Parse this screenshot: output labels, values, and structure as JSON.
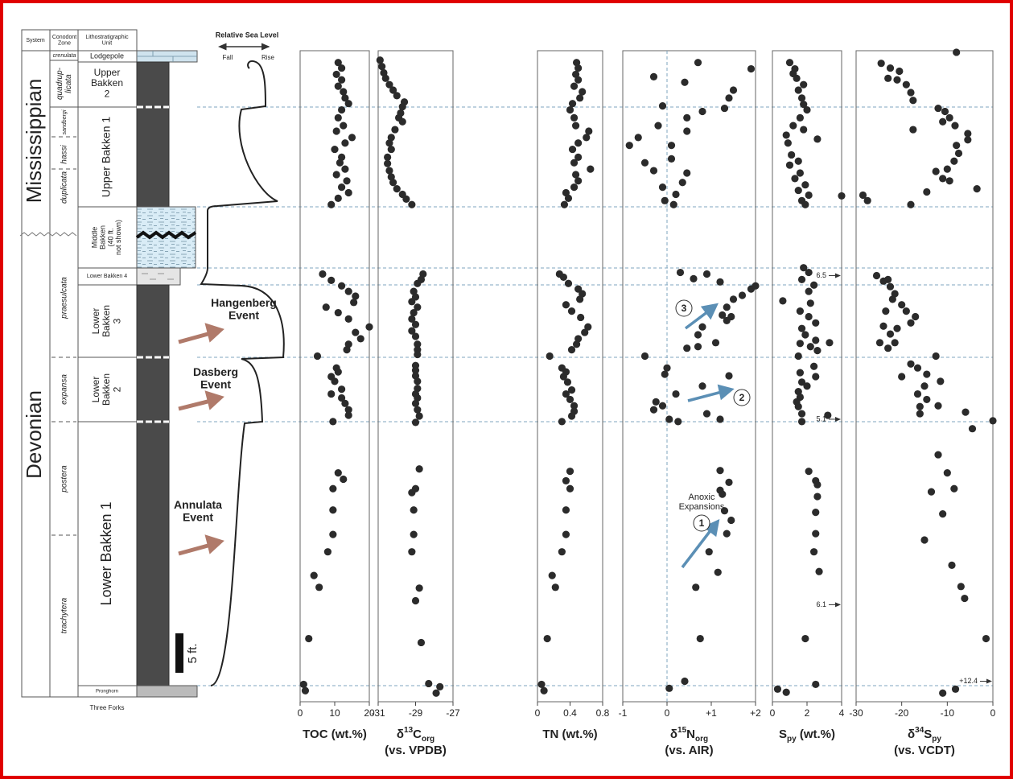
{
  "stratigraphy": {
    "headers": [
      [
        "System"
      ],
      [
        "Conodont",
        "Zone"
      ],
      [
        "Lithostratigraphic",
        "Unit"
      ]
    ],
    "systems": [
      "Mississippian",
      "Devonian"
    ],
    "zones": [
      [
        "crenulata"
      ],
      [
        "quadrup-",
        "licata"
      ],
      [
        "sandbergi"
      ],
      [
        "hassi"
      ],
      [
        "duplicata"
      ],
      [
        "praesulcata"
      ],
      [
        "expansa"
      ],
      [
        "postera"
      ],
      [
        "trachytera"
      ]
    ],
    "units": [
      [
        "Lodgepole"
      ],
      [
        "Upper",
        "Bakken",
        "2"
      ],
      [
        "Upper Bakken 1"
      ],
      [
        "Middle",
        "Bakken",
        "(40 ft.",
        "not shown)"
      ],
      [
        "Lower Bakken 4"
      ],
      [
        "Lower",
        "Bakken",
        "3"
      ],
      [
        "Lower",
        "Bakken",
        "2"
      ],
      [
        "Lower Bakken 1"
      ],
      [
        "Pronghorn"
      ]
    ],
    "underlying": "Three Forks",
    "scale_bar": "5 ft."
  },
  "sea_level": {
    "title": "Relative Sea Level",
    "fall": "Fall",
    "rise": "Rise"
  },
  "events": [
    [
      "Hangenberg",
      "Event"
    ],
    [
      "Dasberg",
      "Event"
    ],
    [
      "Annulata",
      "Event"
    ]
  ],
  "anoxic": {
    "label": [
      "Anoxic",
      "Expansions"
    ],
    "markers": [
      "1",
      "2",
      "3"
    ]
  },
  "chart_data": [
    {
      "type": "scatter",
      "xlabel": {
        "base": "TOC (wt.%)"
      },
      "xlim": [
        0,
        20
      ],
      "xticks": [
        0,
        10,
        20
      ],
      "ylim": [
        -2,
        80.5
      ],
      "color": "#2b2b2b",
      "x": [
        11,
        12,
        10.5,
        12,
        11,
        12.5,
        13,
        14,
        12,
        11,
        12.5,
        10.5,
        15,
        13,
        10,
        12,
        11.5,
        13,
        10.5,
        13.5,
        12,
        14,
        11,
        9,
        6.5,
        9,
        12,
        14,
        16,
        15.5,
        7.5,
        11,
        14,
        20,
        16,
        17.5,
        14,
        13.5,
        5,
        10.5,
        11,
        9,
        10,
        12,
        9,
        12,
        13,
        14,
        14,
        9.5,
        11,
        12.5,
        9.5,
        9.5,
        9.5,
        8,
        4,
        5.5,
        2.5,
        1,
        1.5
      ],
      "values": [
        79,
        78.3,
        77.5,
        76.8,
        76,
        75.3,
        74.5,
        73.8,
        73,
        72,
        71,
        70.3,
        69.5,
        68.8,
        68,
        67,
        66.3,
        65.5,
        64.8,
        64,
        63.2,
        62.5,
        61.8,
        61,
        52.2,
        51.4,
        50.7,
        50,
        49.4,
        48.6,
        48,
        47.3,
        46.5,
        45.5,
        44.8,
        44,
        43.3,
        42.6,
        41.8,
        40.3,
        39.8,
        39.2,
        38.6,
        37.6,
        37,
        36.5,
        35.8,
        35,
        34.3,
        33.5,
        27,
        26.2,
        25,
        22.3,
        19.2,
        17,
        14,
        12.5,
        6,
        0.2,
        -0.6
      ]
    },
    {
      "type": "scatter",
      "xlabel": {
        "pre": "δ",
        "sup": "13",
        "base": "C",
        "sub": "org"
      },
      "xlabel2": "(vs. VPDB)",
      "xlim": [
        -31,
        -27
      ],
      "xticks": [
        -31,
        -29,
        -27
      ],
      "ylim": [
        -2,
        80.5
      ],
      "color": "#2b2b2b",
      "x": [
        -30.9,
        -30.8,
        -30.7,
        -30.6,
        -30.4,
        -30.2,
        -30,
        -29.6,
        -29.7,
        -29.8,
        -29.9,
        -29.7,
        -30.1,
        -30.3,
        -30.4,
        -30.3,
        -30.5,
        -30.5,
        -30.4,
        -30.3,
        -30.2,
        -30,
        -29.7,
        -29.5,
        -29.2,
        -28.6,
        -28.7,
        -28.9,
        -29.1,
        -29,
        -29.2,
        -28.9,
        -29.1,
        -29.2,
        -29,
        -29.2,
        -29,
        -28.9,
        -28.9,
        -28.9,
        -29,
        -29,
        -29,
        -28.9,
        -28.9,
        -29,
        -28.9,
        -29,
        -28.9,
        -28.8,
        -29,
        -28.8,
        -29,
        -29.2,
        -29.1,
        -29.1,
        -29.2,
        -28.8,
        -29,
        -28.7,
        -28.3,
        -27.7,
        -27.9
      ],
      "values": [
        79.3,
        78.5,
        77.7,
        77,
        76.2,
        75.5,
        74.8,
        74,
        73.4,
        72.6,
        72,
        71.5,
        70.5,
        69.5,
        68.8,
        68,
        67,
        66.2,
        65.3,
        64.5,
        63.8,
        63,
        62.3,
        61.7,
        61,
        52.2,
        51.5,
        51,
        50,
        49.3,
        48.7,
        48,
        47.3,
        46.5,
        45.8,
        45,
        44.3,
        43.3,
        42.6,
        42,
        40.6,
        40,
        39.3,
        38.6,
        37.7,
        37,
        36.5,
        35.8,
        35,
        34.2,
        33.4,
        27.5,
        25,
        24.5,
        22.3,
        19.2,
        17,
        12.4,
        10.8,
        5.5,
        0.3,
        -0.1,
        -0.9
      ]
    },
    {
      "type": "scatter",
      "xlabel": {
        "base": "TN (wt.%)"
      },
      "xlim": [
        0,
        0.8
      ],
      "xticks": [
        0,
        0.4,
        0.8
      ],
      "ylim": [
        -2,
        80.5
      ],
      "color": "#2b2b2b",
      "x": [
        0.48,
        0.5,
        0.47,
        0.5,
        0.45,
        0.55,
        0.52,
        0.43,
        0.4,
        0.45,
        0.47,
        0.63,
        0.6,
        0.5,
        0.43,
        0.5,
        0.45,
        0.65,
        0.47,
        0.5,
        0.45,
        0.35,
        0.38,
        0.33,
        0.27,
        0.32,
        0.38,
        0.5,
        0.55,
        0.52,
        0.35,
        0.42,
        0.53,
        0.62,
        0.58,
        0.5,
        0.48,
        0.42,
        0.15,
        0.3,
        0.35,
        0.32,
        0.37,
        0.42,
        0.35,
        0.4,
        0.45,
        0.45,
        0.42,
        0.3,
        0.4,
        0.35,
        0.4,
        0.35,
        0.35,
        0.3,
        0.18,
        0.22,
        0.12,
        0.05,
        0.08
      ],
      "values": [
        79,
        78.3,
        77.5,
        76.8,
        76,
        75.3,
        74.5,
        73.8,
        73,
        72,
        71,
        70.3,
        69.5,
        68.8,
        68,
        67,
        66.3,
        65.5,
        64.8,
        64,
        63.2,
        62.5,
        61.8,
        61,
        52.2,
        51.8,
        51,
        50.3,
        49.7,
        49,
        48.3,
        47.5,
        46.7,
        45.5,
        44.8,
        44,
        43.3,
        42.6,
        41.8,
        40.3,
        39.8,
        39.2,
        38.5,
        37.5,
        37,
        36.3,
        35.5,
        34.8,
        34.2,
        33.5,
        27.2,
        26,
        25,
        22.3,
        19.2,
        17,
        14,
        12.5,
        6,
        0.2,
        -0.6
      ]
    },
    {
      "type": "scatter",
      "xlabel": {
        "pre": "δ",
        "sup": "15",
        "base": "N",
        "sub": "org"
      },
      "xlabel2": "(vs. AIR)",
      "xlim": [
        -1,
        2
      ],
      "xticks": [
        -1,
        0,
        {
          "value": 1,
          "label": "+1"
        },
        {
          "value": 2,
          "label": "+2"
        }
      ],
      "zero_line": true,
      "ylim": [
        -2,
        80.5
      ],
      "color": "#2b2b2b",
      "x": [
        0.7,
        1.9,
        -0.3,
        0.4,
        1.5,
        1.4,
        1.3,
        -0.1,
        0.8,
        0.45,
        -0.2,
        0.45,
        -0.65,
        -0.85,
        0.1,
        0.1,
        -0.5,
        -0.3,
        0.45,
        0.35,
        -0.1,
        0.2,
        -0.05,
        0.15,
        0.3,
        0.9,
        0.6,
        1.2,
        1.9,
        2,
        1.7,
        1.5,
        1.35,
        1.25,
        1.45,
        1.35,
        0.8,
        0.7,
        1.1,
        0.45,
        0.7,
        -0.5,
        0,
        -0.05,
        1.4,
        0.8,
        0.2,
        -0.25,
        -0.1,
        -0.3,
        0.9,
        0.05,
        0.25,
        1.2,
        1.2,
        1.4,
        1.2,
        1.25,
        1.3,
        1.45,
        1.35,
        0.95,
        1.15,
        0.65,
        0.75,
        0.4,
        0.05
      ],
      "values": [
        79,
        78.2,
        77.2,
        76.5,
        75.5,
        74.5,
        73.2,
        73.5,
        72.8,
        72,
        71,
        70.3,
        69.5,
        68.5,
        68.5,
        66.8,
        66.3,
        65.3,
        65,
        63.8,
        63.2,
        62.3,
        61.5,
        61,
        52.4,
        52.2,
        51.6,
        51.2,
        50.3,
        50.7,
        49.5,
        49,
        48,
        47,
        46.8,
        46.3,
        45.5,
        44.5,
        43.5,
        42.8,
        43,
        41.8,
        40.3,
        39.5,
        39.3,
        38,
        37,
        36,
        35.5,
        35,
        34.5,
        33.8,
        33.5,
        33.8,
        27.3,
        25.8,
        24.8,
        24.3,
        22.2,
        21,
        19.3,
        17,
        14.4,
        12.5,
        6,
        0.6,
        -0.3
      ]
    },
    {
      "type": "scatter",
      "xlabel": {
        "base": "S",
        "sub": "py",
        "post": " (wt.%)"
      },
      "xlim": [
        0,
        4
      ],
      "xticks": [
        0,
        2,
        4
      ],
      "ylim": [
        -2,
        80.5
      ],
      "color": "#2b2b2b",
      "x": [
        1,
        1.3,
        1.2,
        1.4,
        1.8,
        1.5,
        1.7,
        1.8,
        2,
        1.6,
        1.2,
        1.8,
        0.8,
        2.6,
        0.9,
        1.1,
        1.5,
        1,
        1.6,
        1.3,
        1.9,
        1.5,
        2.1,
        1.7,
        4,
        1.9,
        1.8,
        2.1,
        1.7,
        2.4,
        2.1,
        0.6,
        2.2,
        1.6,
        2.1,
        2.5,
        1.7,
        1.9,
        2.5,
        1.6,
        2.2,
        3.3,
        2.6,
        1.5,
        2.4,
        1.6,
        2.5,
        1.7,
        2,
        1.5,
        1.6,
        1.4,
        1.5,
        1.7,
        1.7,
        3.2,
        2.1,
        2.5,
        2.6,
        2.6,
        2.5,
        2.5,
        2.4,
        2.7,
        1.9,
        2.5,
        0.3,
        0.8
      ],
      "values": [
        79,
        78.2,
        77.6,
        77,
        76.2,
        75.5,
        74.5,
        73.7,
        73,
        72,
        71,
        70.5,
        69.8,
        69.3,
        68.8,
        67.3,
        66.5,
        66,
        65,
        64.3,
        63.5,
        62.8,
        62.2,
        61.5,
        62.1,
        61,
        53,
        52.4,
        51.5,
        50.8,
        50,
        48.8,
        48.5,
        47.5,
        46.8,
        46,
        45.3,
        44.5,
        43.8,
        43.4,
        43,
        43.5,
        42.5,
        41.8,
        40.5,
        39.7,
        39.2,
        38.5,
        38,
        37.3,
        36.6,
        36,
        35.4,
        34.5,
        33.5,
        34.3,
        27.2,
        26,
        25.5,
        24,
        22,
        19.3,
        17,
        14.5,
        6,
        0.2,
        -0.4,
        -0.8
      ],
      "annotations": [
        {
          "label": "6.5",
          "height": 52
        },
        {
          "label": "5.1",
          "height": 33.8
        },
        {
          "label": "6.1",
          "height": 10.3
        }
      ]
    },
    {
      "type": "scatter",
      "xlabel": {
        "pre": "δ",
        "sup": "34",
        "base": "S",
        "sub": "py"
      },
      "xlabel2": "(vs. VCDT)",
      "xlim": [
        -30,
        0
      ],
      "xticks": [
        -30,
        -20,
        -10,
        0
      ],
      "ylim": [
        -2,
        80.5
      ],
      "color": "#2b2b2b",
      "x": [
        -8,
        -24.5,
        -22.5,
        -20.5,
        -23,
        -21,
        -19,
        -18,
        -17.5,
        -12,
        -10.5,
        -9.5,
        -11,
        -8.3,
        -17.5,
        -5.5,
        -5.5,
        -8,
        -7.5,
        -8.5,
        -10,
        -12.5,
        -11,
        -9.5,
        -3.5,
        -14.5,
        -28.5,
        -27.5,
        -18,
        -25.5,
        -23,
        -24,
        -22.5,
        -21.5,
        -22,
        -20,
        -19,
        -23.5,
        -17,
        -18,
        -24,
        -21,
        -22.5,
        -24.8,
        -21.5,
        -23,
        -12.5,
        -18,
        -16.5,
        -14.5,
        -20,
        -11.5,
        -15,
        -16.5,
        -14.5,
        -16,
        -12,
        -16,
        -6,
        0,
        -4.5,
        -12,
        -10,
        -8.5,
        -13.5,
        -11,
        -15,
        -9,
        -7,
        -6.2,
        -1.5,
        -8.2,
        -11
      ],
      "values": [
        80.3,
        78.9,
        78.3,
        77.9,
        77,
        76.8,
        76.2,
        75.2,
        74.2,
        73.2,
        72.8,
        72,
        71.5,
        71,
        70.5,
        70,
        69.2,
        68.5,
        67.5,
        66.5,
        65.5,
        65.2,
        64.3,
        64,
        63,
        62.6,
        62.2,
        61.5,
        61,
        52,
        51.5,
        51.3,
        50.6,
        49.7,
        49,
        48.3,
        47.5,
        47.5,
        46.8,
        46,
        45.6,
        45.3,
        44.6,
        43.5,
        43.5,
        42.8,
        41.8,
        40.8,
        40.3,
        39.5,
        39.2,
        38.6,
        38,
        37,
        36.3,
        35.4,
        35.5,
        34.5,
        34.7,
        33.6,
        32.6,
        29.3,
        27,
        25,
        24.6,
        21.8,
        18.5,
        15.3,
        12.6,
        11.1,
        6,
        -0.4,
        -0.9
      ],
      "annotations": [
        {
          "label": "+12.4",
          "height": 0.6
        }
      ]
    }
  ]
}
